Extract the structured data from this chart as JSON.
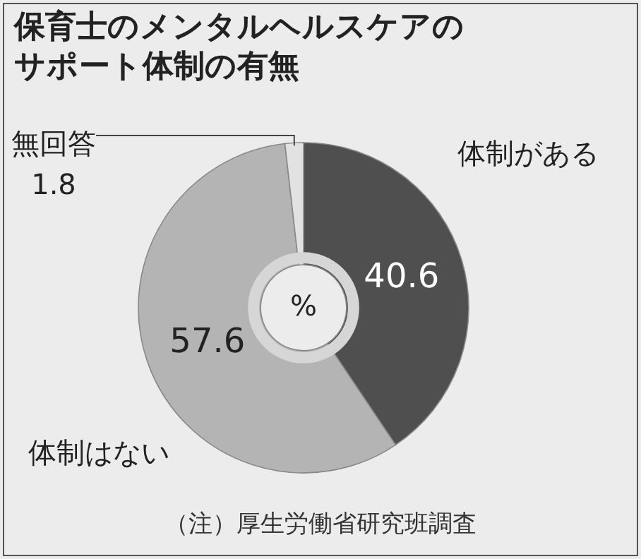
{
  "chart_data": {
    "type": "donut",
    "title": "保育士のメンタルヘルスケアのサポート体制の有無",
    "categories": [
      "体制がある",
      "体制はない",
      "無回答"
    ],
    "values": [
      40.6,
      57.6,
      1.8
    ],
    "colors": [
      "#4f4f4f",
      "#b4b4b4",
      "#e2e2e2"
    ],
    "data_labels": true,
    "annotations": [
      "%",
      "（注）厚生労働省研究班調査"
    ]
  }
}
